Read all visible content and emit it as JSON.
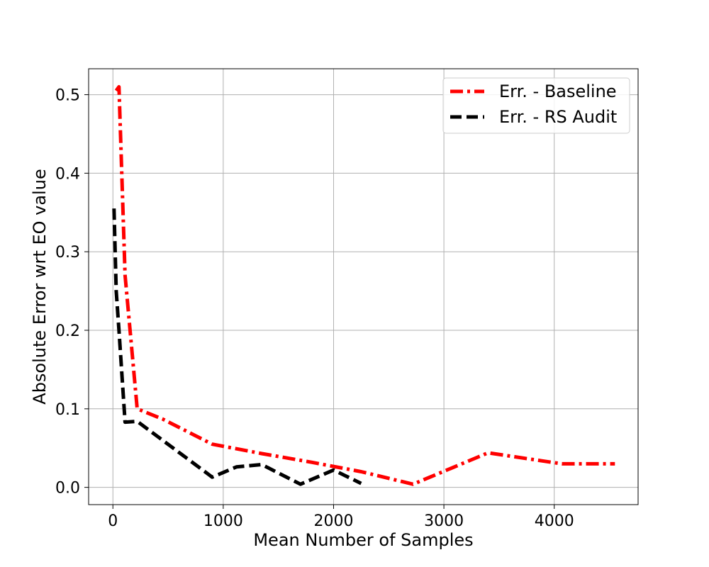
{
  "chart_data": {
    "type": "line",
    "title": "",
    "xlabel": "Mean Number of Samples",
    "ylabel": "Absolute Error wrt EO value",
    "xlim": [
      -220,
      4760
    ],
    "ylim": [
      -0.022,
      0.533
    ],
    "xticks": [
      0,
      1000,
      2000,
      3000,
      4000
    ],
    "yticks": [
      0.0,
      0.1,
      0.2,
      0.3,
      0.4,
      0.5
    ],
    "xtick_labels": [
      "0",
      "1000",
      "2000",
      "3000",
      "4000"
    ],
    "ytick_labels": [
      "0.0",
      "0.1",
      "0.2",
      "0.3",
      "0.4",
      "0.5"
    ],
    "grid": true,
    "legend_position": "top-right",
    "series": [
      {
        "name": "Err. - Baseline",
        "color": "#ff0000",
        "dash": "dashdot",
        "x": [
          30,
          55,
          110,
          220,
          450,
          900,
          1350,
          1800,
          2250,
          2720,
          3400,
          4070,
          4550
        ],
        "y": [
          0.505,
          0.51,
          0.27,
          0.1,
          0.087,
          0.055,
          0.043,
          0.032,
          0.02,
          0.004,
          0.044,
          0.03,
          0.03
        ]
      },
      {
        "name": "Err. - RS Audit",
        "color": "#000000",
        "dash": "dashed",
        "x": [
          10,
          30,
          55,
          110,
          220,
          450,
          900,
          1120,
          1350,
          1700,
          2000,
          2250
        ],
        "y": [
          0.355,
          0.25,
          0.2,
          0.083,
          0.084,
          0.06,
          0.013,
          0.026,
          0.029,
          0.004,
          0.022,
          0.005
        ]
      }
    ]
  }
}
